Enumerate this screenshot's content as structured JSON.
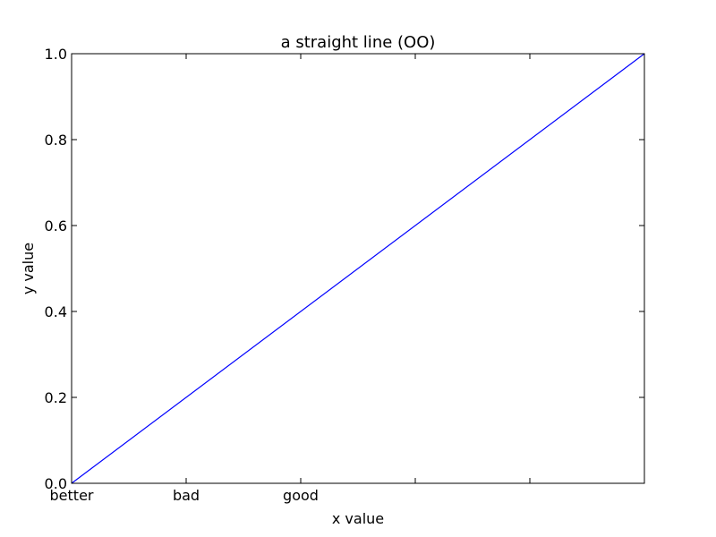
{
  "chart_data": {
    "type": "line",
    "title": "a straight line (OO)",
    "xlabel": "x value",
    "ylabel": "y value",
    "xlim": [
      0,
      1
    ],
    "ylim": [
      0,
      1
    ],
    "xticks": [
      {
        "value": 0.0,
        "label": "better"
      },
      {
        "value": 0.2,
        "label": "bad"
      },
      {
        "value": 0.4,
        "label": "good"
      },
      {
        "value": 0.6,
        "label": ""
      },
      {
        "value": 0.8,
        "label": ""
      },
      {
        "value": 1.0,
        "label": ""
      }
    ],
    "yticks": [
      {
        "value": 0.0,
        "label": "0.0"
      },
      {
        "value": 0.2,
        "label": "0.2"
      },
      {
        "value": 0.4,
        "label": "0.4"
      },
      {
        "value": 0.6,
        "label": "0.6"
      },
      {
        "value": 0.8,
        "label": "0.8"
      },
      {
        "value": 1.0,
        "label": "1.0"
      }
    ],
    "series": [
      {
        "color": "#0000ff",
        "x": [
          0,
          1
        ],
        "y": [
          0,
          1
        ]
      }
    ],
    "grid": false,
    "legend": "none"
  }
}
